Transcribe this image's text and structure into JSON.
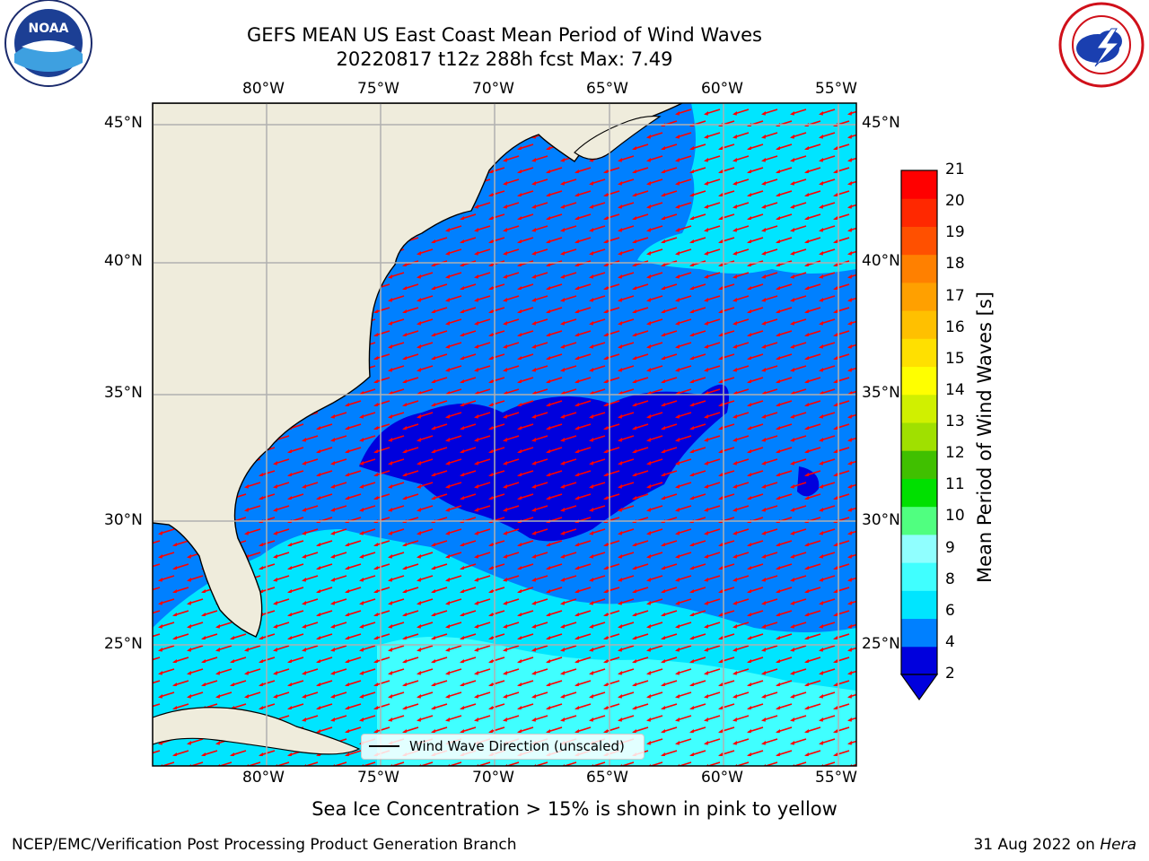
{
  "title": {
    "line1": "GEFS MEAN US East Coast Mean Period of Wind Waves",
    "line2": "20220817 t12z 288h fcst   Max: 7.49"
  },
  "logos": {
    "left": {
      "icon": "noaa-logo-icon",
      "text": "NOAA"
    },
    "right": {
      "icon": "national-weather-service-logo-icon"
    }
  },
  "map": {
    "lon_ticks": [
      "80°W",
      "75°W",
      "70°W",
      "65°W",
      "60°W",
      "55°W"
    ],
    "lat_ticks": [
      "45°N",
      "40°N",
      "35°N",
      "30°N",
      "25°N"
    ],
    "legend_label": "Wind Wave Direction (unscaled)",
    "colors": {
      "land": "#efecdc",
      "coast": "#000000",
      "grid": "#b0b0b0",
      "arrow": "#ff0000"
    }
  },
  "colorbar": {
    "label": "Mean Period of Wind Waves [s]",
    "ticks": [
      "21",
      "20",
      "19",
      "18",
      "17",
      "16",
      "15",
      "14",
      "13",
      "12",
      "11",
      "10",
      "9",
      "8",
      "6",
      "4",
      "2"
    ],
    "colors": [
      "#0000dd",
      "#0080ff",
      "#00e5ff",
      "#40ffff",
      "#90ffff",
      "#50ff80",
      "#00e000",
      "#40c000",
      "#a0e000",
      "#d0f000",
      "#ffff00",
      "#ffe000",
      "#ffc000",
      "#ffa000",
      "#ff8000",
      "#ff5000",
      "#ff2800",
      "#ff0000"
    ]
  },
  "note": "Sea Ice Concentration > 15% is shown in pink to yellow",
  "footer": {
    "left": "NCEP/EMC/Verification Post Processing Product Generation Branch",
    "date": "31 Aug 2022 on",
    "host": "Hera"
  }
}
